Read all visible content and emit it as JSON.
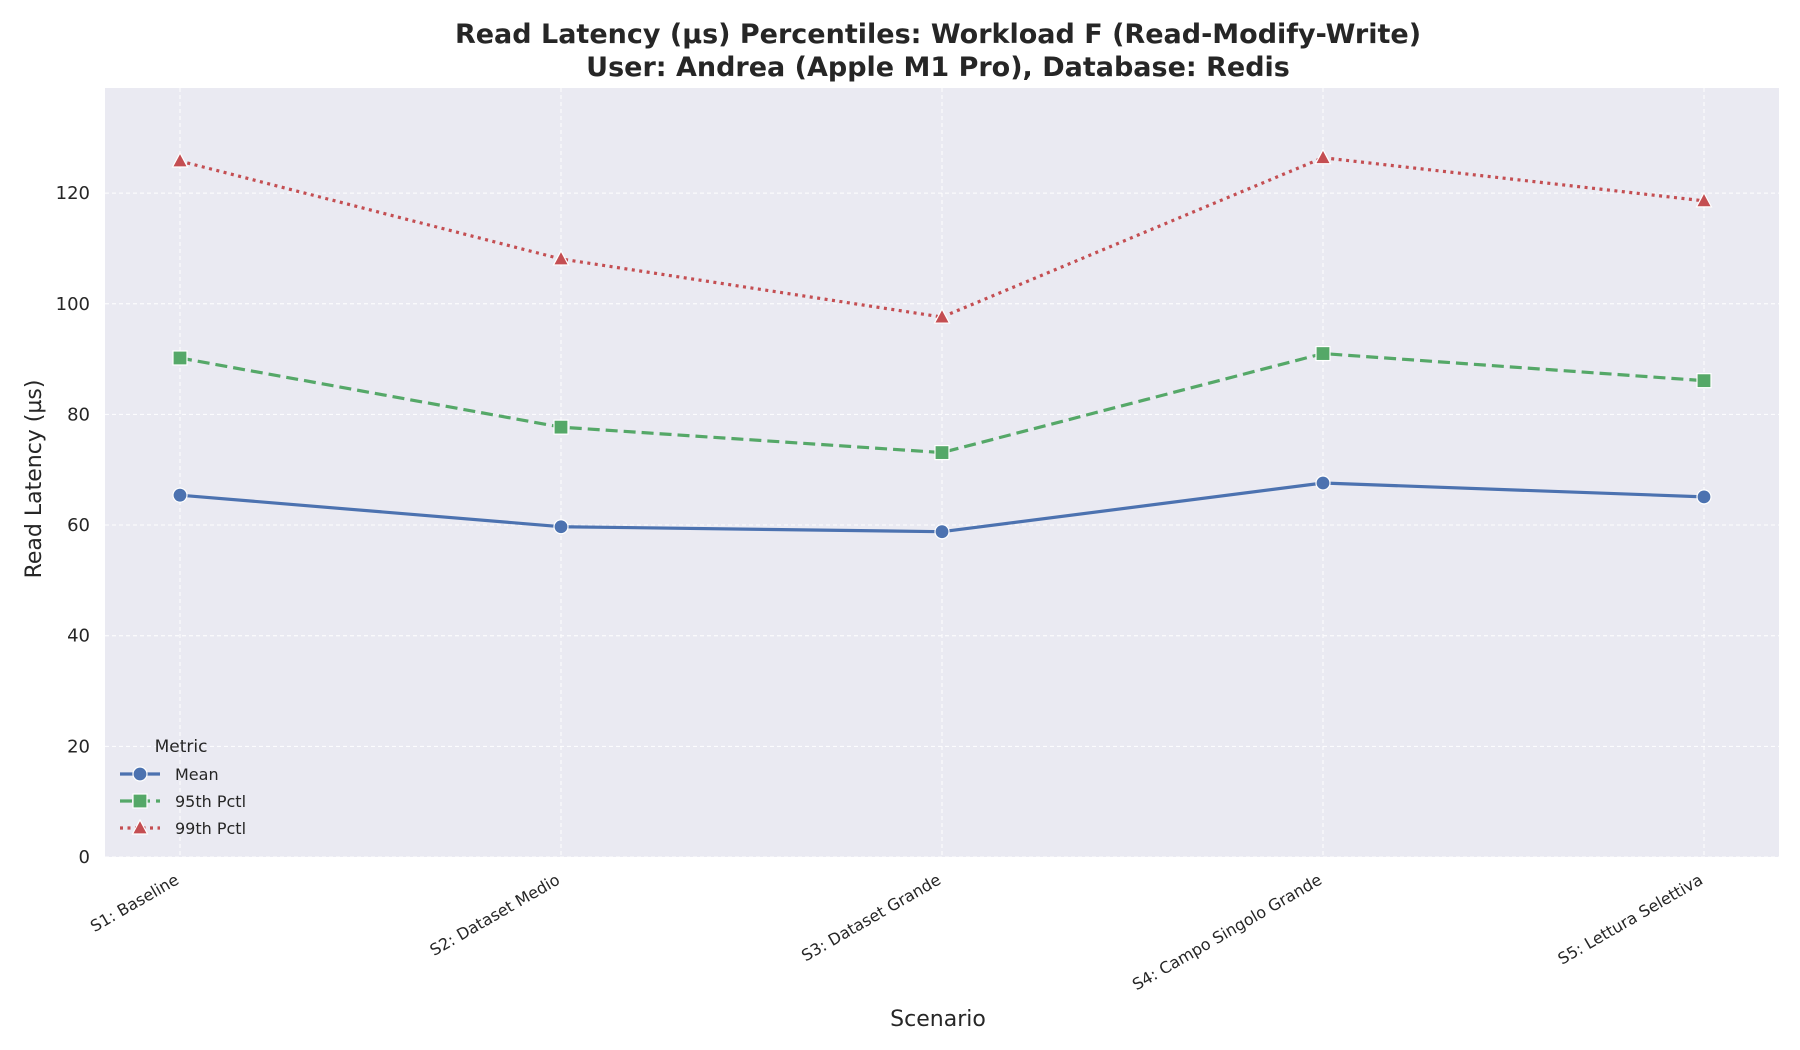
{
  "chart_data": {
    "type": "line",
    "title_line1": "Read Latency (µs) Percentiles: Workload F (Read-Modify-Write)",
    "title_line2": "User: Andrea (Apple M1 Pro), Database: Redis",
    "xlabel": "Scenario",
    "ylabel": "Read Latency (µs)",
    "categories": [
      "S1: Baseline",
      "S2: Dataset Medio",
      "S3: Dataset Grande",
      "S4: Campo Singolo Grande",
      "S5: Lettura Selettiva"
    ],
    "ylim": [
      0,
      139
    ],
    "yticks": [
      0,
      20,
      40,
      60,
      80,
      100,
      120
    ],
    "grid": true,
    "legend": {
      "title": "Metric",
      "placement": "lower-left"
    },
    "series": [
      {
        "name": "Mean",
        "values": [
          65.4,
          59.7,
          58.8,
          67.6,
          65.1
        ],
        "color": "#4c72b0",
        "marker": "circle",
        "dash": "solid"
      },
      {
        "name": "95th Pctl",
        "values": [
          90.2,
          77.7,
          73.1,
          91.0,
          86.1
        ],
        "color": "#55a868",
        "marker": "square",
        "dash": "dashed"
      },
      {
        "name": "99th Pctl",
        "values": [
          125.8,
          108.1,
          97.6,
          126.4,
          118.6
        ],
        "color": "#c44e52",
        "marker": "triangle",
        "dash": "dotted"
      }
    ]
  }
}
